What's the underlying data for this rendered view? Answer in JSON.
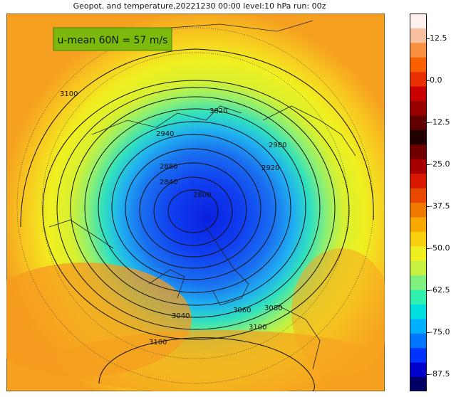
{
  "title": "Geopot. and temperature,20221230 00:00 level:10 hPa run: 00z",
  "annotation": "u-mean 60N = 57 m/s",
  "colorbar": {
    "ticks": [
      "12.5",
      "0.0",
      "-12.5",
      "-25.0",
      "-37.5",
      "-50.0",
      "-62.5",
      "-75.0",
      "-87.5"
    ],
    "range": [
      -92.5,
      20
    ],
    "colors": [
      "#000066",
      "#0000cc",
      "#0033ff",
      "#0077ff",
      "#00b0ff",
      "#00dfe0",
      "#30f0b0",
      "#80f080",
      "#c8f040",
      "#f0f020",
      "#f8d010",
      "#f8a800",
      "#f07800",
      "#e84800",
      "#d81800",
      "#a80000",
      "#700000",
      "#200000",
      "#600000",
      "#980000",
      "#c80000",
      "#e83000",
      "#f86000",
      "#f89040",
      "#f8c0a0",
      "#fff0f0"
    ]
  },
  "contour_labels": [
    "3100",
    "3020",
    "2940",
    "2980",
    "2920",
    "2880",
    "2840",
    "2800",
    "3060",
    "3080",
    "3040",
    "3100",
    "3100"
  ]
}
